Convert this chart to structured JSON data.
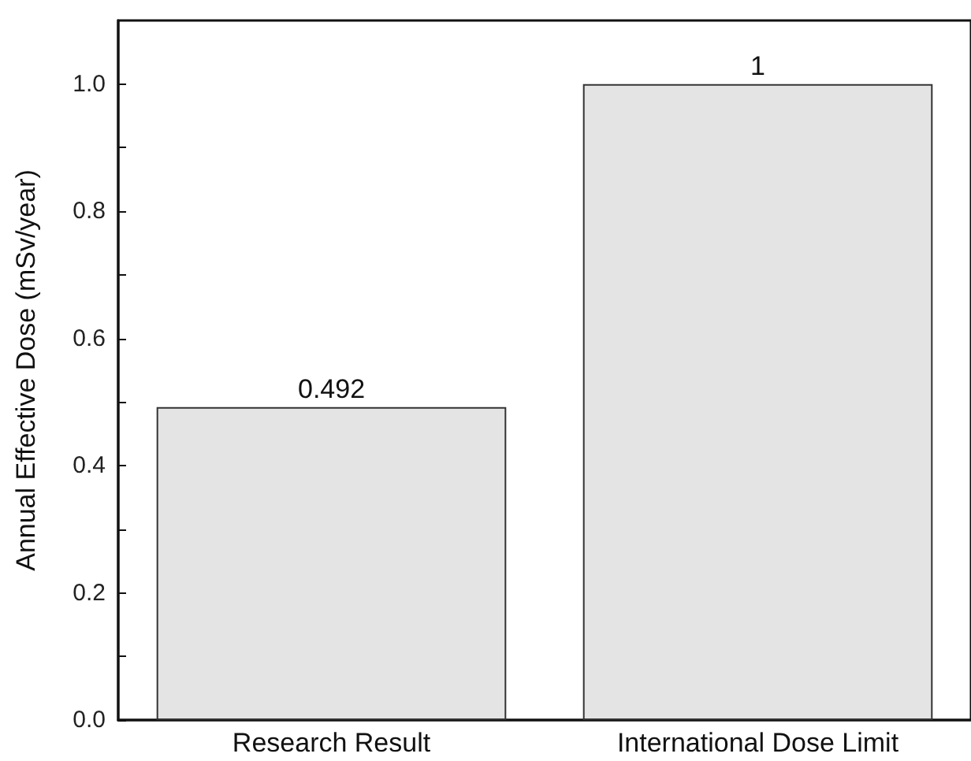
{
  "chart_data": {
    "type": "bar",
    "categories": [
      "Research Result",
      "International Dose Limit"
    ],
    "values": [
      0.492,
      1
    ],
    "color": "#e4e4e4",
    "ylabel": "Annual Effective Dose (mSv/year)",
    "ylim": [
      0,
      1.1
    ],
    "yticks": [
      "0.0",
      {
        "value": 0.1,
        "label": null
      },
      "0.2",
      {
        "value": 0.3,
        "label": null
      },
      "0.4",
      {
        "value": 0.5,
        "label": null
      },
      "0.6",
      {
        "value": 0.7,
        "label": null
      },
      "0.8",
      {
        "value": 0.9,
        "label": null
      },
      "1.0"
    ],
    "data_labels": true,
    "grid": false
  }
}
